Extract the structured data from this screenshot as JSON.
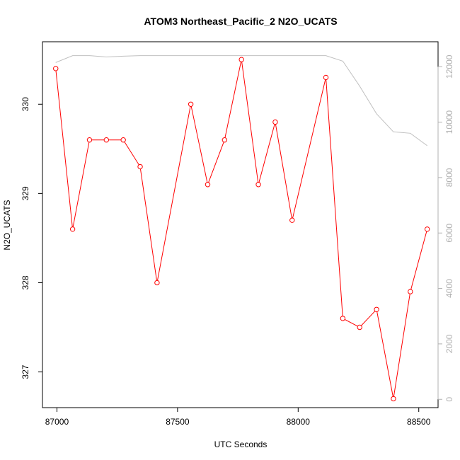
{
  "chart_data": {
    "type": "line",
    "title": "ATOM3 Northeast_Pacific_2 N2O_UCATS",
    "xlabel": "UTC Seconds",
    "ylabel": "N2O_UCATS",
    "xlim": [
      86940,
      88580
    ],
    "ylim": [
      326.6,
      330.7
    ],
    "y2lim": [
      -300,
      12900
    ],
    "x_ticks": [
      87000,
      87500,
      88000,
      88500
    ],
    "y_ticks": [
      327,
      328,
      329,
      330
    ],
    "y2_ticks": [
      0,
      2000,
      4000,
      6000,
      8000,
      10000,
      12000
    ],
    "grid": false,
    "series": [
      {
        "axis": "left",
        "color": "#ff0000",
        "marker": "open-circle",
        "x": [
          86995,
          87065,
          87135,
          87205,
          87275,
          87345,
          87415,
          87555,
          87625,
          87695,
          87765,
          87835,
          87905,
          87975,
          88115,
          88185,
          88255,
          88325,
          88395,
          88465,
          88535
        ],
        "y": [
          330.4,
          328.6,
          329.6,
          329.6,
          329.6,
          329.3,
          328.0,
          330.0,
          329.1,
          329.6,
          330.5,
          329.1,
          329.8,
          328.7,
          330.3,
          327.6,
          327.5,
          327.7,
          326.7,
          327.9,
          328.6
        ]
      },
      {
        "axis": "right",
        "color": "#c0c0c0",
        "marker": "none",
        "x": [
          86995,
          87065,
          87135,
          87205,
          87275,
          87345,
          87415,
          87555,
          87625,
          87695,
          87765,
          87835,
          87905,
          87975,
          88115,
          88185,
          88255,
          88325,
          88395,
          88465,
          88535
        ],
        "y": [
          12150,
          12400,
          12400,
          12350,
          12380,
          12400,
          12400,
          12400,
          12400,
          12400,
          12400,
          12400,
          12400,
          12400,
          12400,
          12200,
          11300,
          10300,
          9650,
          9600,
          9150
        ]
      }
    ]
  }
}
